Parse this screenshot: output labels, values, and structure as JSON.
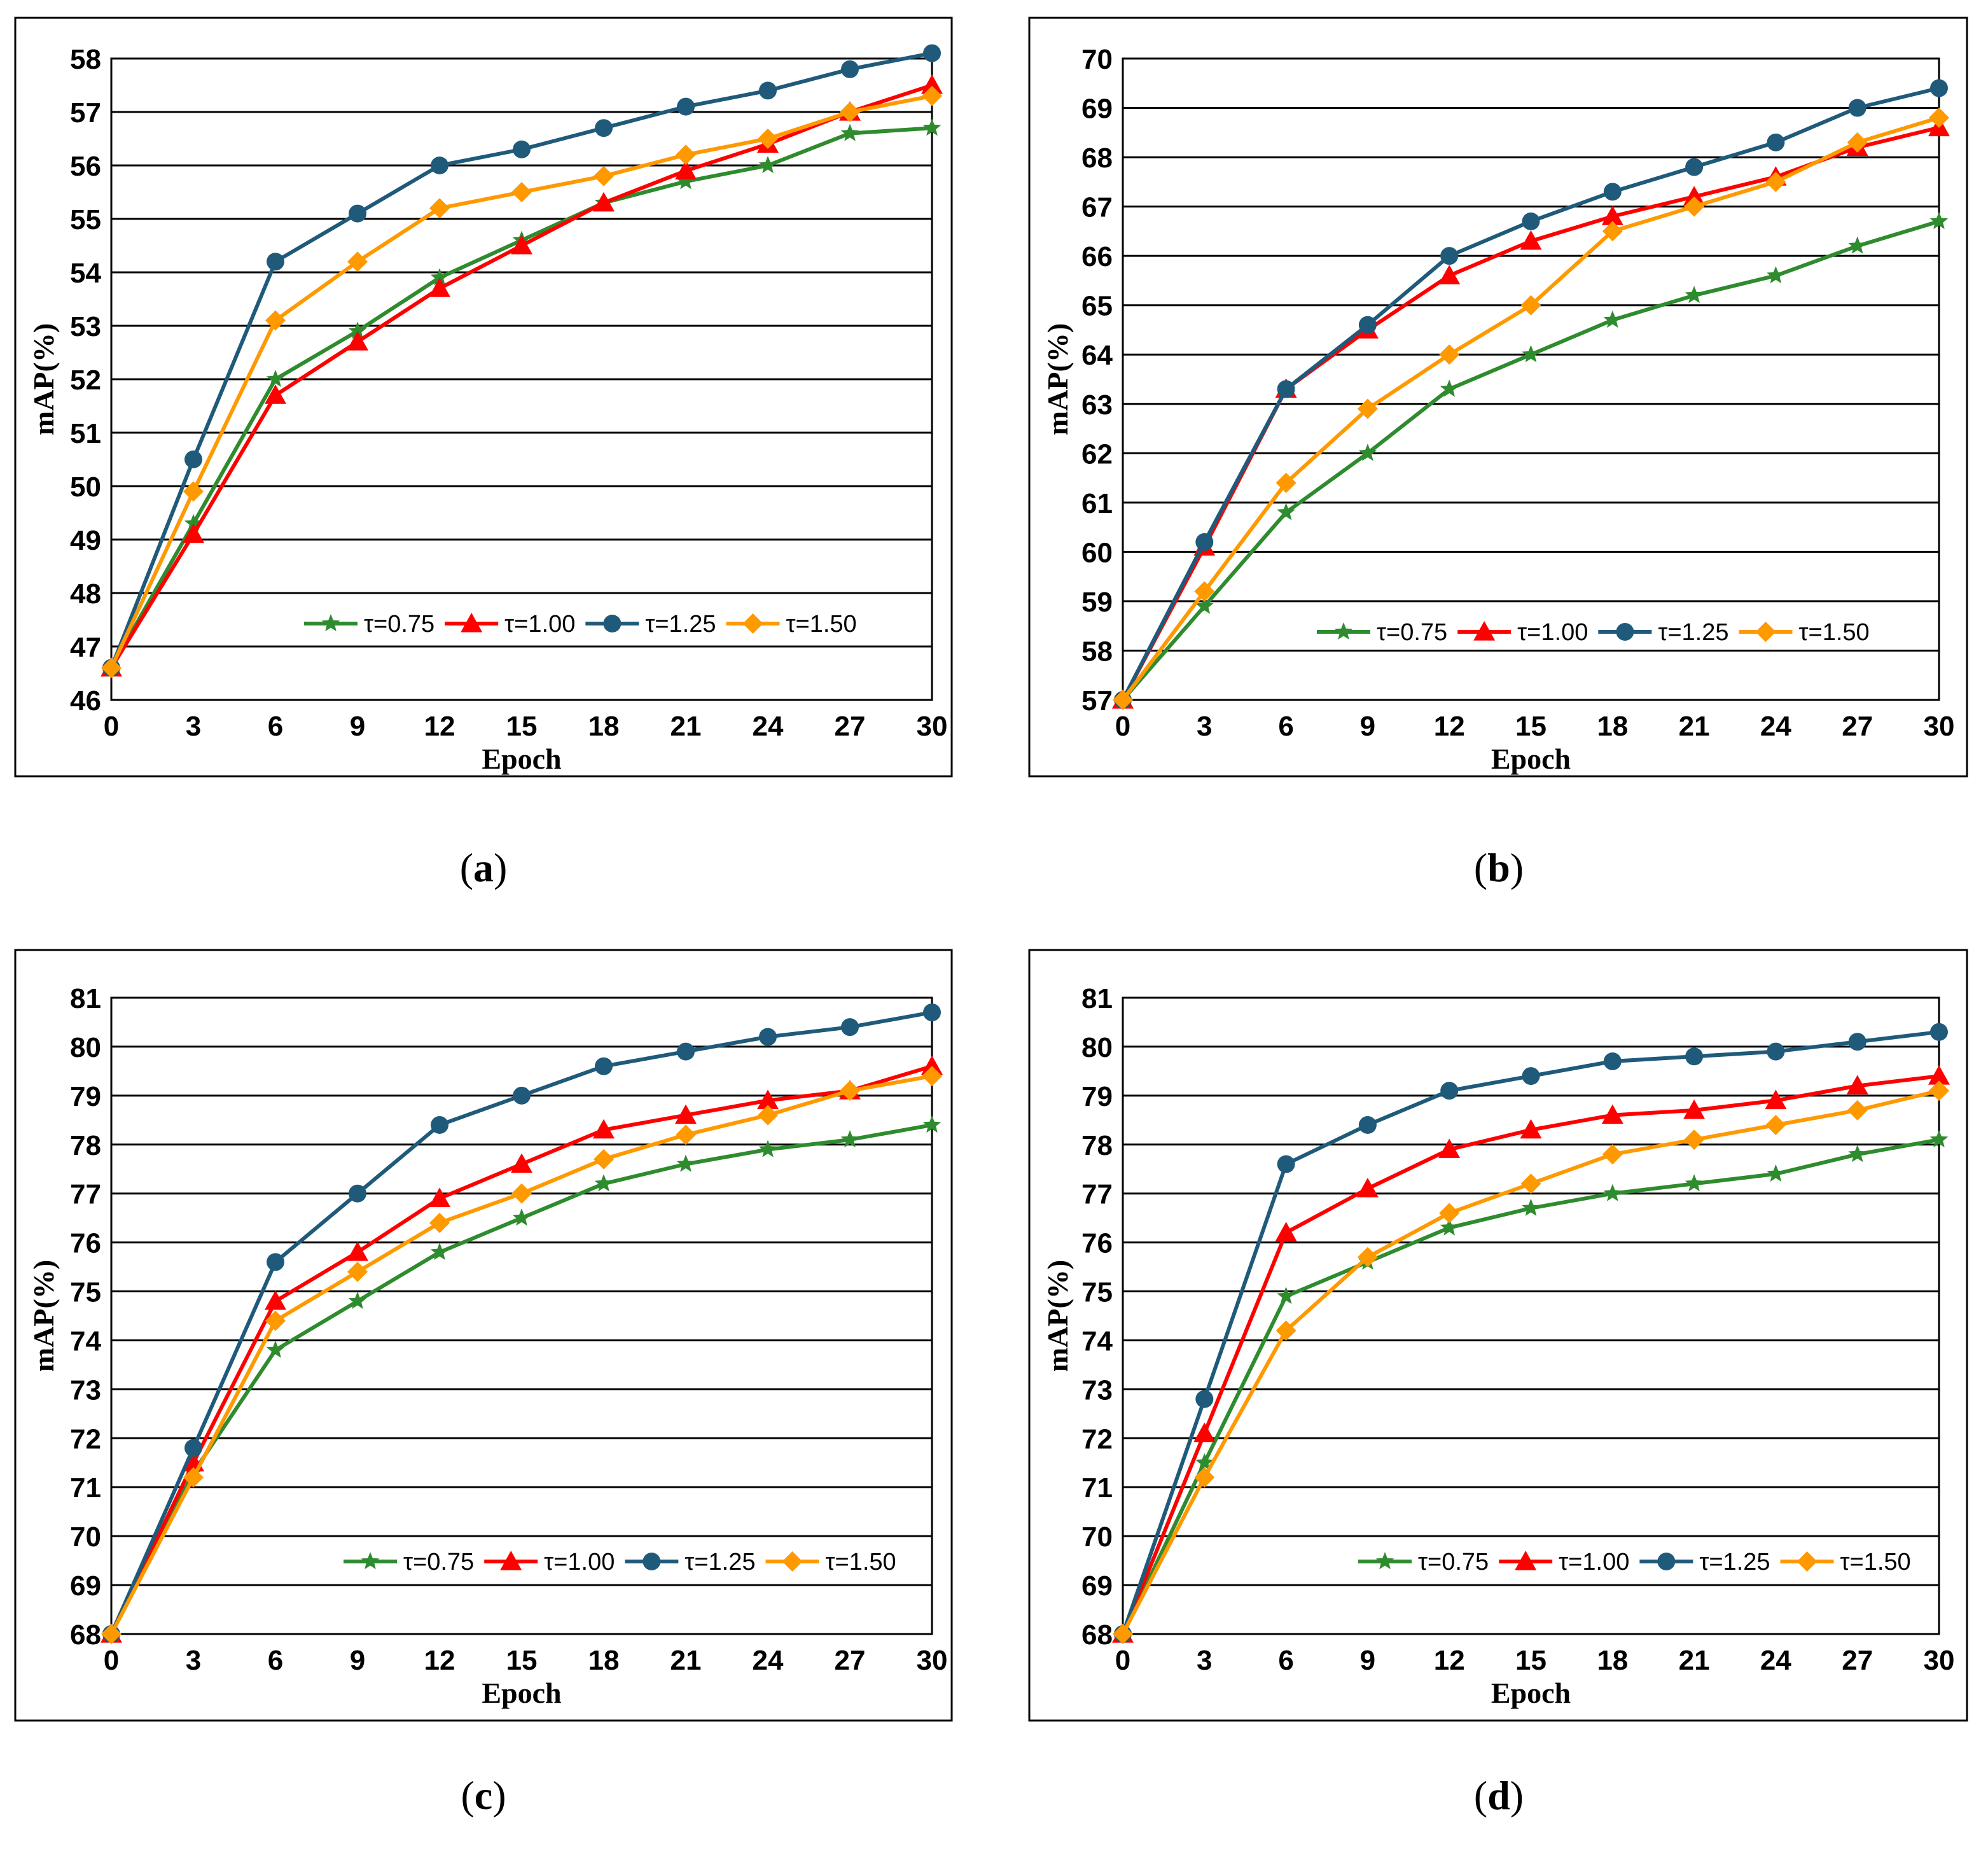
{
  "chart_data": [
    {
      "type": "line",
      "caption": "a",
      "xlabel": "Epoch",
      "ylabel": "mAP(%)",
      "x": [
        0,
        3,
        6,
        9,
        12,
        15,
        18,
        21,
        24,
        27,
        30
      ],
      "xticks": [
        "0",
        "3",
        "6",
        "9",
        "12",
        "15",
        "18",
        "21",
        "24",
        "27",
        "30"
      ],
      "xlim": [
        0,
        30
      ],
      "ylim": [
        46,
        58
      ],
      "yticks": [
        "46",
        "47",
        "48",
        "49",
        "50",
        "51",
        "52",
        "53",
        "54",
        "55",
        "56",
        "57",
        "58"
      ],
      "grid": "horizontal",
      "legend_position": "bottom-right",
      "series": [
        {
          "name": "τ=0.75",
          "color": "#2E8B2E",
          "marker": "star",
          "values": [
            46.6,
            49.3,
            52.0,
            52.9,
            53.9,
            54.6,
            55.3,
            55.7,
            56.0,
            56.6,
            56.7
          ]
        },
        {
          "name": "τ=1.00",
          "color": "#FF0000",
          "marker": "triangle",
          "values": [
            46.6,
            49.1,
            51.7,
            52.7,
            53.7,
            54.5,
            55.3,
            55.9,
            56.4,
            57.0,
            57.5
          ]
        },
        {
          "name": "τ=1.25",
          "color": "#1F5A7A",
          "marker": "circle",
          "values": [
            46.6,
            50.5,
            54.2,
            55.1,
            56.0,
            56.3,
            56.7,
            57.1,
            57.4,
            57.8,
            58.1
          ]
        },
        {
          "name": "τ=1.50",
          "color": "#FF9900",
          "marker": "diamond",
          "values": [
            46.6,
            49.9,
            53.1,
            54.2,
            55.2,
            55.5,
            55.8,
            56.2,
            56.5,
            57.0,
            57.3
          ]
        }
      ]
    },
    {
      "type": "line",
      "caption": "b",
      "xlabel": "Epoch",
      "ylabel": "mAP(%)",
      "x": [
        0,
        3,
        6,
        9,
        12,
        15,
        18,
        21,
        24,
        27,
        30
      ],
      "xticks": [
        "0",
        "3",
        "6",
        "9",
        "12",
        "15",
        "18",
        "21",
        "24",
        "27",
        "30"
      ],
      "xlim": [
        0,
        30
      ],
      "ylim": [
        57,
        70
      ],
      "yticks": [
        "57",
        "58",
        "59",
        "60",
        "61",
        "62",
        "63",
        "64",
        "65",
        "66",
        "67",
        "68",
        "69",
        "70"
      ],
      "grid": "horizontal",
      "legend_position": "bottom-right",
      "series": [
        {
          "name": "τ=0.75",
          "color": "#2E8B2E",
          "marker": "star",
          "values": [
            57.0,
            58.9,
            60.8,
            62.0,
            63.3,
            64.0,
            64.7,
            65.2,
            65.6,
            66.2,
            66.7
          ]
        },
        {
          "name": "τ=1.00",
          "color": "#FF0000",
          "marker": "triangle",
          "values": [
            57.0,
            60.1,
            63.3,
            64.5,
            65.6,
            66.3,
            66.8,
            67.2,
            67.6,
            68.2,
            68.6
          ]
        },
        {
          "name": "τ=1.25",
          "color": "#1F5A7A",
          "marker": "circle",
          "values": [
            57.0,
            60.2,
            63.3,
            64.6,
            66.0,
            66.7,
            67.3,
            67.8,
            68.3,
            69.0,
            69.4
          ]
        },
        {
          "name": "τ=1.50",
          "color": "#FF9900",
          "marker": "diamond",
          "values": [
            57.0,
            59.2,
            61.4,
            62.9,
            64.0,
            65.0,
            66.5,
            67.0,
            67.5,
            68.3,
            68.8
          ]
        }
      ]
    },
    {
      "type": "line",
      "caption": "c",
      "xlabel": "Epoch",
      "ylabel": "mAP(%)",
      "x": [
        0,
        3,
        6,
        9,
        12,
        15,
        18,
        21,
        24,
        27,
        30
      ],
      "xticks": [
        "0",
        "3",
        "6",
        "9",
        "12",
        "15",
        "18",
        "21",
        "24",
        "27",
        "30"
      ],
      "xlim": [
        0,
        30
      ],
      "ylim": [
        68,
        81
      ],
      "yticks": [
        "68",
        "69",
        "70",
        "71",
        "72",
        "73",
        "74",
        "75",
        "76",
        "77",
        "78",
        "79",
        "80",
        "81"
      ],
      "grid": "horizontal",
      "legend_position": "bottom-right",
      "series": [
        {
          "name": "τ=0.75",
          "color": "#2E8B2E",
          "marker": "star",
          "values": [
            68.0,
            71.3,
            73.8,
            74.8,
            75.8,
            76.5,
            77.2,
            77.6,
            77.9,
            78.1,
            78.4
          ]
        },
        {
          "name": "τ=1.00",
          "color": "#FF0000",
          "marker": "triangle",
          "values": [
            68.0,
            71.5,
            74.8,
            75.8,
            76.9,
            77.6,
            78.3,
            78.6,
            78.9,
            79.1,
            79.6
          ]
        },
        {
          "name": "τ=1.25",
          "color": "#1F5A7A",
          "marker": "circle",
          "values": [
            68.0,
            71.8,
            75.6,
            77.0,
            78.4,
            79.0,
            79.6,
            79.9,
            80.2,
            80.4,
            80.7
          ]
        },
        {
          "name": "τ=1.50",
          "color": "#FF9900",
          "marker": "diamond",
          "values": [
            68.0,
            71.2,
            74.4,
            75.4,
            76.4,
            77.0,
            77.7,
            78.2,
            78.6,
            79.1,
            79.4
          ]
        }
      ]
    },
    {
      "type": "line",
      "caption": "d",
      "xlabel": "Epoch",
      "ylabel": "mAP(%)",
      "x": [
        0,
        3,
        6,
        9,
        12,
        15,
        18,
        21,
        24,
        27,
        30
      ],
      "xticks": [
        "0",
        "3",
        "6",
        "9",
        "12",
        "15",
        "18",
        "21",
        "24",
        "27",
        "30"
      ],
      "xlim": [
        0,
        30
      ],
      "ylim": [
        68,
        81
      ],
      "yticks": [
        "68",
        "69",
        "70",
        "71",
        "72",
        "73",
        "74",
        "75",
        "76",
        "77",
        "78",
        "79",
        "80",
        "81"
      ],
      "grid": "horizontal",
      "legend_position": "bottom-right",
      "series": [
        {
          "name": "τ=0.75",
          "color": "#2E8B2E",
          "marker": "star",
          "values": [
            68.0,
            71.5,
            74.9,
            75.6,
            76.3,
            76.7,
            77.0,
            77.2,
            77.4,
            77.8,
            78.1
          ]
        },
        {
          "name": "τ=1.00",
          "color": "#FF0000",
          "marker": "triangle",
          "values": [
            68.0,
            72.1,
            76.2,
            77.1,
            77.9,
            78.3,
            78.6,
            78.7,
            78.9,
            79.2,
            79.4
          ]
        },
        {
          "name": "τ=1.25",
          "color": "#1F5A7A",
          "marker": "circle",
          "values": [
            68.0,
            72.8,
            77.6,
            78.4,
            79.1,
            79.4,
            79.7,
            79.8,
            79.9,
            80.1,
            80.3
          ]
        },
        {
          "name": "τ=1.50",
          "color": "#FF9900",
          "marker": "diamond",
          "values": [
            68.0,
            71.2,
            74.2,
            75.7,
            76.6,
            77.2,
            77.8,
            78.1,
            78.4,
            78.7,
            79.1
          ]
        }
      ]
    }
  ]
}
